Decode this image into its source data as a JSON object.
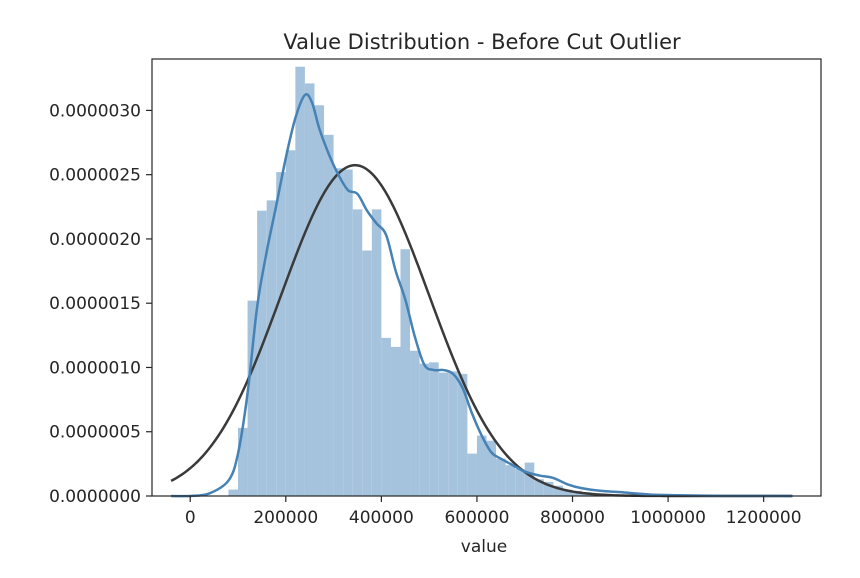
{
  "chart_data": {
    "type": "bar",
    "title": "Value Distribution - Before Cut Outlier",
    "xlabel": "value",
    "ylabel": "",
    "xlim": [
      -80000,
      1320000
    ],
    "ylim": [
      0,
      3.4e-06
    ],
    "grid": false,
    "xticks": [
      0,
      200000,
      400000,
      600000,
      800000,
      1000000,
      1200000
    ],
    "xtick_labels": [
      "0",
      "200000",
      "400000",
      "600000",
      "800000",
      "1000000",
      "1200000"
    ],
    "yticks": [
      0,
      5e-07,
      1e-06,
      1.5e-06,
      2e-06,
      2.5e-06,
      3e-06
    ],
    "ytick_labels": [
      "0.0000000",
      "0.0000005",
      "0.0000010",
      "0.0000015",
      "0.0000020",
      "0.0000025",
      "0.0000030"
    ],
    "colors": {
      "hist": "#a6c3dd",
      "kde": "#4682b4",
      "fit": "#3a3a3a"
    },
    "histogram": {
      "bin_edges": [
        80000,
        100000,
        120000,
        140000,
        160000,
        180000,
        200000,
        220000,
        240000,
        260000,
        280000,
        300000,
        320000,
        340000,
        360000,
        380000,
        400000,
        420000,
        440000,
        460000,
        480000,
        500000,
        520000,
        540000,
        560000,
        580000,
        600000,
        620000,
        640000,
        660000,
        680000,
        700000,
        720000,
        740000,
        760000,
        780000,
        800000,
        820000,
        840000,
        860000,
        880000,
        900000,
        920000,
        940000,
        960000,
        980000,
        1000000
      ],
      "densities": [
        5e-08,
        5.3e-07,
        1.52e-06,
        2.22e-06,
        2.3e-06,
        2.52e-06,
        2.69e-06,
        3.34e-06,
        3.21e-06,
        3.04e-06,
        2.81e-06,
        2.55e-06,
        2.54e-06,
        2.23e-06,
        1.91e-06,
        2.23e-06,
        1.23e-06,
        1.16e-06,
        1.92e-06,
        1.13e-06,
        1.03e-06,
        1.04e-06,
        9.6e-07,
        9.7e-07,
        9.5e-07,
        3.3e-07,
        4.7e-07,
        4.3e-07,
        2.9e-07,
        2.4e-07,
        2.1e-07,
        2.6e-07,
        1.3e-07,
        1.1e-07,
        8e-08,
        5e-08,
        4e-08,
        3e-08,
        2e-08,
        1e-08,
        8e-09,
        6e-09,
        4e-09,
        3e-09,
        2e-09,
        2e-09
      ]
    },
    "series": [
      {
        "kind": "kde",
        "x": [
          -40000,
          0,
          40000,
          80000,
          100000,
          120000,
          140000,
          160000,
          180000,
          200000,
          220000,
          240000,
          255000,
          270000,
          290000,
          310000,
          330000,
          350000,
          370000,
          390000,
          410000,
          430000,
          450000,
          470000,
          490000,
          510000,
          530000,
          550000,
          570000,
          590000,
          610000,
          630000,
          650000,
          670000,
          700000,
          730000,
          760000,
          790000,
          820000,
          860000,
          900000,
          960000,
          1020000,
          1100000,
          1180000,
          1260000
        ],
        "y": [
          0.0,
          0.0,
          2e-08,
          1.2e-07,
          3.3e-07,
          8e-07,
          1.47e-06,
          1.9e-06,
          2.26e-06,
          2.63e-06,
          2.94e-06,
          3.12e-06,
          3.06e-06,
          2.86e-06,
          2.66e-06,
          2.5e-06,
          2.38e-06,
          2.35e-06,
          2.22e-06,
          2.12e-06,
          2.03e-06,
          1.75e-06,
          1.53e-06,
          1.24e-06,
          1.02e-06,
          9.8e-07,
          9.8e-07,
          9.5e-07,
          8.4e-07,
          6.4e-07,
          4.7e-07,
          3.4e-07,
          2.9e-07,
          2.5e-07,
          1.9e-07,
          1.6e-07,
          1.4e-07,
          9e-08,
          6e-08,
          4e-08,
          3e-08,
          1.2e-08,
          6e-09,
          2e-09,
          1e-09,
          0.0
        ]
      },
      {
        "kind": "normal_fit",
        "mean": 345000,
        "std": 155000
      }
    ]
  }
}
